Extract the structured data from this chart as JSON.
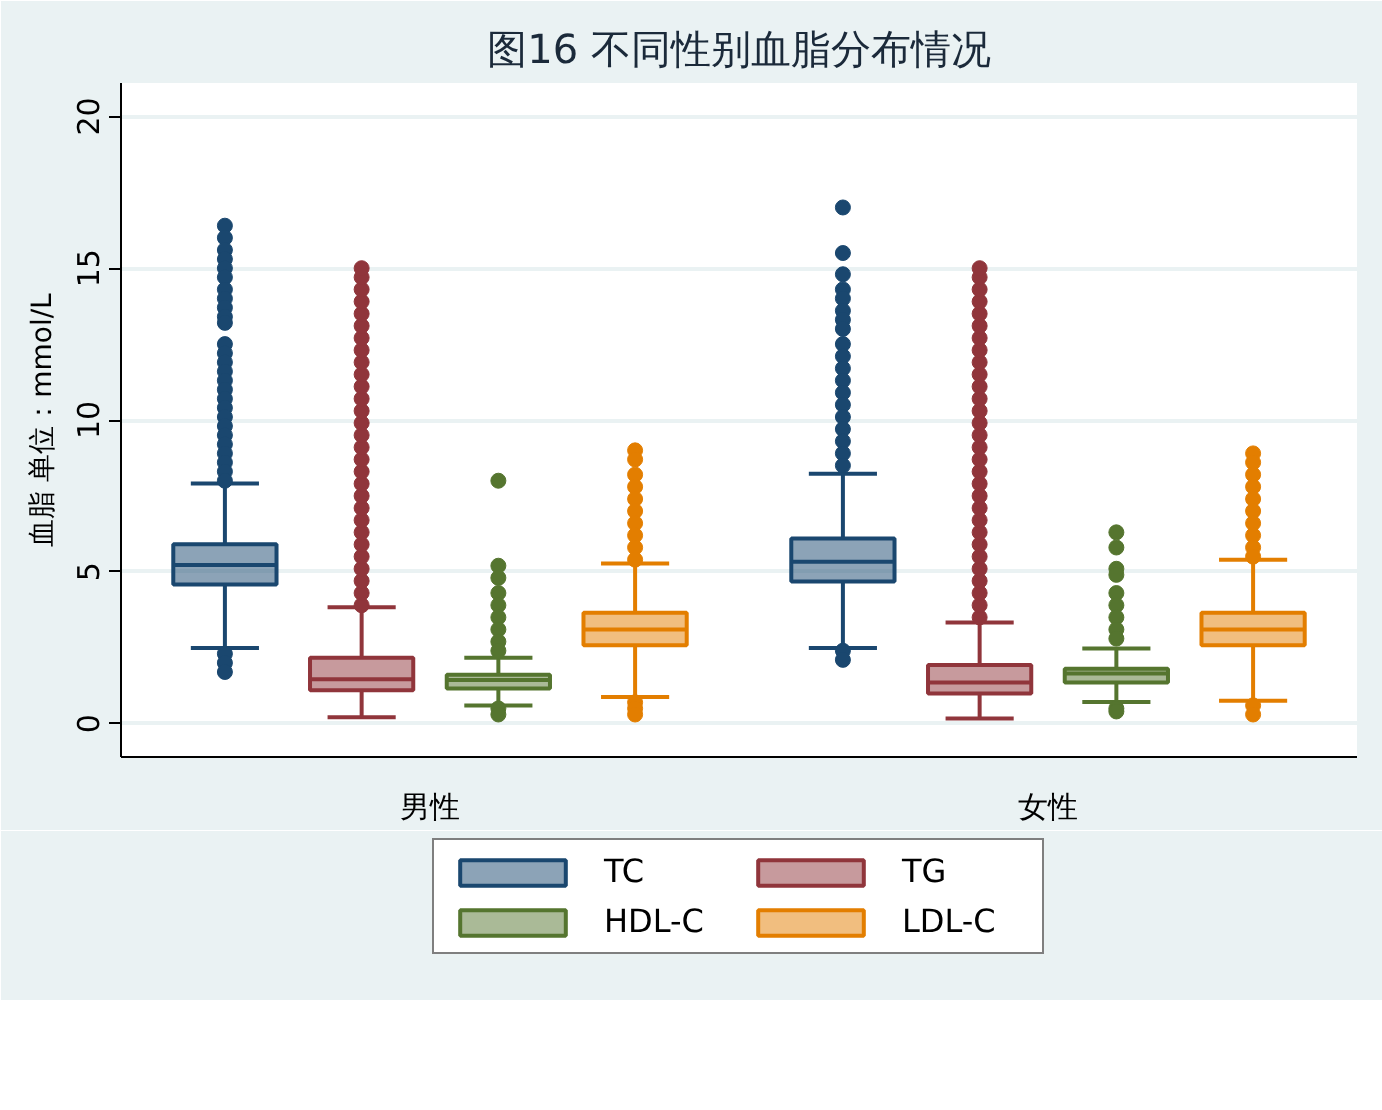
{
  "chart_data": {
    "type": "box",
    "title": "图16 不同性别血脂分布情况",
    "ylabel": "血脂 单位：mmol/L",
    "categories": [
      "男性",
      "女性"
    ],
    "ylim": [
      -1.1,
      21.1
    ],
    "yticks": [
      0,
      5,
      10,
      15,
      20
    ],
    "grid": "y",
    "legend": "bottom",
    "marker": "circle",
    "series": [
      {
        "name": "TC",
        "color": "#1a476f",
        "boxes": [
          {
            "low": 2.49,
            "q1": 4.58,
            "median": 5.22,
            "q3": 5.91,
            "high": 7.91,
            "outliers": [
              16.4,
              16.0,
              15.6,
              15.3,
              15.0,
              14.7,
              14.3,
              14.0,
              13.7,
              13.4,
              13.2,
              12.5,
              12.2,
              11.9,
              11.6,
              11.3,
              11.0,
              10.7,
              10.4,
              10.1,
              9.8,
              9.5,
              9.2,
              8.9,
              8.6,
              8.3,
              8.0,
              2.3,
              2.0,
              1.7
            ]
          },
          {
            "low": 2.49,
            "q1": 4.68,
            "median": 5.33,
            "q3": 6.1,
            "high": 8.23,
            "outliers": [
              17.0,
              15.5,
              14.8,
              14.3,
              14.0,
              13.6,
              13.3,
              13.0,
              12.5,
              12.1,
              11.7,
              11.3,
              10.9,
              10.5,
              10.1,
              9.7,
              9.3,
              8.9,
              8.5,
              2.4,
              2.1
            ]
          }
        ]
      },
      {
        "name": "TG",
        "color": "#90353b",
        "boxes": [
          {
            "low": 0.21,
            "q1": 1.1,
            "median": 1.46,
            "q3": 2.17,
            "high": 3.83,
            "outliers": [
              3.9,
              4.3,
              4.7,
              5.1,
              5.5,
              5.9,
              6.3,
              6.7,
              7.1,
              7.5,
              7.9,
              8.3,
              8.7,
              9.1,
              9.5,
              9.9,
              10.3,
              10.7,
              11.1,
              11.5,
              11.9,
              12.3,
              12.7,
              13.1,
              13.5,
              13.9,
              14.3,
              14.7,
              15.0
            ]
          },
          {
            "low": 0.17,
            "q1": 0.99,
            "median": 1.35,
            "q3": 1.93,
            "high": 3.33,
            "outliers": [
              3.5,
              3.9,
              4.3,
              4.7,
              5.1,
              5.5,
              5.9,
              6.3,
              6.7,
              7.1,
              7.5,
              7.9,
              8.3,
              8.7,
              9.1,
              9.5,
              9.9,
              10.3,
              10.7,
              11.1,
              11.5,
              11.9,
              12.3,
              12.7,
              13.1,
              13.5,
              13.9,
              14.3,
              14.7,
              15.0
            ]
          }
        ]
      },
      {
        "name": "HDL-C",
        "color": "#55752f",
        "boxes": [
          {
            "low": 0.6,
            "q1": 1.16,
            "median": 1.44,
            "q3": 1.61,
            "high": 2.17,
            "outliers": [
              8.0,
              5.2,
              4.8,
              4.3,
              3.9,
              3.5,
              3.1,
              2.7,
              2.4,
              0.5,
              0.3
            ]
          },
          {
            "low": 0.71,
            "q1": 1.35,
            "median": 1.65,
            "q3": 1.81,
            "high": 2.47,
            "outliers": [
              6.3,
              5.8,
              5.1,
              4.9,
              4.3,
              3.9,
              3.5,
              3.1,
              2.8,
              0.5,
              0.4
            ]
          }
        ]
      },
      {
        "name": "LDL-C",
        "color": "#e37e00",
        "boxes": [
          {
            "low": 0.88,
            "q1": 2.58,
            "median": 3.1,
            "q3": 3.65,
            "high": 5.27,
            "outliers": [
              9.0,
              8.7,
              8.2,
              7.8,
              7.4,
              7.0,
              6.6,
              6.2,
              5.8,
              5.4,
              0.7,
              0.5,
              0.3
            ]
          },
          {
            "low": 0.75,
            "q1": 2.58,
            "median": 3.1,
            "q3": 3.65,
            "high": 5.4,
            "outliers": [
              8.9,
              8.6,
              8.2,
              7.8,
              7.4,
              7.0,
              6.6,
              6.2,
              5.8,
              5.5,
              0.6,
              0.3
            ]
          }
        ]
      }
    ]
  }
}
